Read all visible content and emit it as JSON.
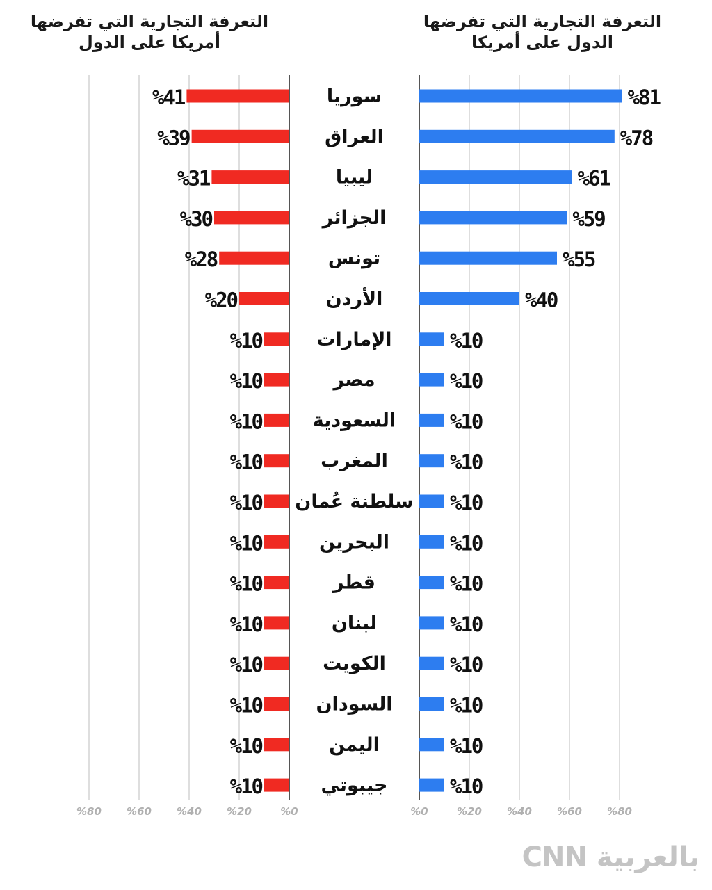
{
  "left_title": "التعرفة التجارية التي تفرضها أمريكا على الدول",
  "right_title": "التعرفة التجارية التي تفرضها الدول على أمريكا",
  "logo_text": "بالعربية CNN",
  "colors": {
    "left_bar": "#f02a22",
    "right_bar": "#2d7df0",
    "grid": "#d4d4d4",
    "axis": "#555555",
    "tick_text": "#b0b0b0",
    "text": "#111111"
  },
  "chart_data": [
    {
      "type": "bar",
      "orientation": "horizontal",
      "direction": "right-to-left",
      "title": "التعرفة التجارية التي تفرضها أمريكا على الدول",
      "categories": [
        "سوريا",
        "العراق",
        "ليبيا",
        "الجزائر",
        "تونس",
        "الأردن",
        "الإمارات",
        "مصر",
        "السعودية",
        "المغرب",
        "سلطنة عُمان",
        "البحرين",
        "قطر",
        "لبنان",
        "الكويت",
        "السودان",
        "اليمن",
        "جيبوتي"
      ],
      "values": [
        41,
        39,
        31,
        30,
        28,
        20,
        10,
        10,
        10,
        10,
        10,
        10,
        10,
        10,
        10,
        10,
        10,
        10
      ],
      "data_labels": [
        "%41",
        "%39",
        "%31",
        "%30",
        "%28",
        "%20",
        "%10",
        "%10",
        "%10",
        "%10",
        "%10",
        "%10",
        "%10",
        "%10",
        "%10",
        "%10",
        "%10",
        "%10"
      ],
      "xlim": [
        0,
        90
      ],
      "ticks": [
        0,
        20,
        40,
        60,
        80
      ],
      "tick_labels": [
        "%0",
        "%20",
        "%40",
        "%60",
        "%80"
      ],
      "grid": true,
      "color": "#f02a22"
    },
    {
      "type": "bar",
      "orientation": "horizontal",
      "direction": "left-to-right",
      "title": "التعرفة التجارية التي تفرضها الدول على أمريكا",
      "categories": [
        "سوريا",
        "العراق",
        "ليبيا",
        "الجزائر",
        "تونس",
        "الأردن",
        "الإمارات",
        "مصر",
        "السعودية",
        "المغرب",
        "سلطنة عُمان",
        "البحرين",
        "قطر",
        "لبنان",
        "الكويت",
        "السودان",
        "اليمن",
        "جيبوتي"
      ],
      "values": [
        81,
        78,
        61,
        59,
        55,
        40,
        10,
        10,
        10,
        10,
        10,
        10,
        10,
        10,
        10,
        10,
        10,
        10
      ],
      "data_labels": [
        "%81",
        "%78",
        "%61",
        "%59",
        "%55",
        "%40",
        "%10",
        "%10",
        "%10",
        "%10",
        "%10",
        "%10",
        "%10",
        "%10",
        "%10",
        "%10",
        "%10",
        "%10"
      ],
      "xlim": [
        0,
        90
      ],
      "ticks": [
        0,
        20,
        40,
        60,
        80
      ],
      "tick_labels": [
        "%0",
        "%20",
        "%40",
        "%60",
        "%80"
      ],
      "grid": true,
      "color": "#2d7df0"
    }
  ]
}
